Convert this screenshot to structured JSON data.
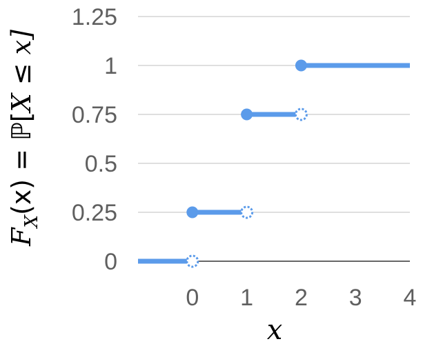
{
  "chart_data": {
    "type": "line",
    "title": "",
    "xlabel": "x",
    "ylabel": "F_X(x) = ℙ[X ≤ x]",
    "ylabel_parts": {
      "func": "F",
      "sub": "X",
      "arg": "(x) = ℙ[",
      "var": "X",
      "rel": " ≤ ",
      "end": "x]"
    },
    "xlim": [
      -1,
      4
    ],
    "ylim": [
      0,
      1.25
    ],
    "x_ticks": [
      0,
      1,
      2,
      3,
      4
    ],
    "y_ticks": [
      0,
      0.25,
      0.5,
      0.75,
      1,
      1.25
    ],
    "y_tick_labels": [
      "0",
      "0.25",
      "0.5",
      "0.75",
      "1",
      "1.25"
    ],
    "grid": true,
    "legend": "none",
    "series": [
      {
        "steps": [
          {
            "x_start": -1,
            "x_end": 0,
            "y": 0,
            "closed_start": false,
            "open_end": true
          },
          {
            "x_start": 0,
            "x_end": 1,
            "y": 0.25,
            "closed_start": true,
            "open_end": true
          },
          {
            "x_start": 1,
            "x_end": 2,
            "y": 0.75,
            "closed_start": true,
            "open_end": true
          },
          {
            "x_start": 2,
            "x_end": 4,
            "y": 1,
            "closed_start": true,
            "open_end": false
          }
        ],
        "color": "#5b9bea"
      }
    ],
    "colors": {
      "line": "#5b9bea",
      "grid": "#cccccc",
      "axis": "#333333",
      "tick_text": "#5f5f5f"
    }
  }
}
